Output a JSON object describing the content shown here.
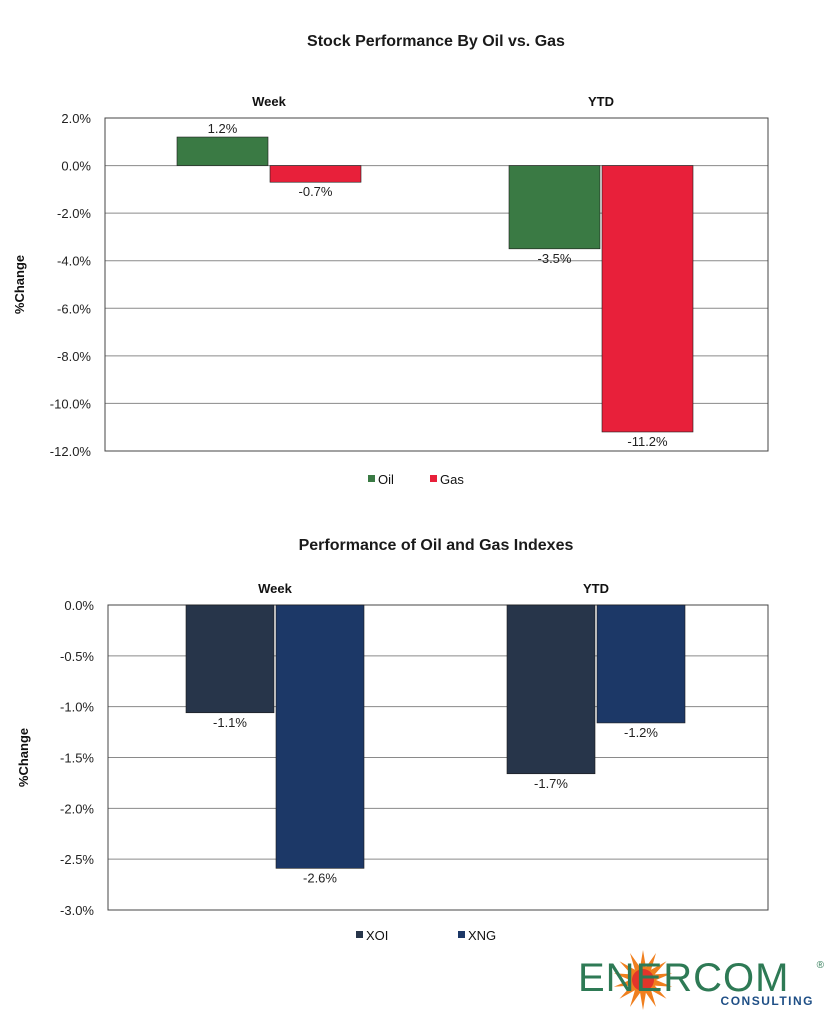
{
  "charts": [
    {
      "title": "Stock Performance By Oil vs. Gas",
      "ylabel": "%Change",
      "categories": [
        "Week",
        "YTD"
      ],
      "y_ticks": [
        "2.0%",
        "0.0%",
        "-2.0%",
        "-4.0%",
        "-6.0%",
        "-8.0%",
        "-10.0%",
        "-12.0%"
      ],
      "legend": [
        "Oil",
        "Gas"
      ]
    },
    {
      "title": "Performance of Oil and Gas Indexes",
      "ylabel": "%Change",
      "categories": [
        "Week",
        "YTD"
      ],
      "y_ticks": [
        "0.0%",
        "-0.5%",
        "-1.0%",
        "-1.5%",
        "-2.0%",
        "-2.5%",
        "-3.0%"
      ],
      "legend": [
        "XOI",
        "XNG"
      ]
    }
  ],
  "chart_data": [
    {
      "type": "bar",
      "title": "Stock Performance By Oil vs. Gas",
      "ylabel": "%Change",
      "xlabel": "",
      "categories": [
        "Week",
        "YTD"
      ],
      "ylim": [
        -12,
        2
      ],
      "y_tick_step": 2,
      "grid": true,
      "legend_position": "bottom",
      "series": [
        {
          "name": "Oil",
          "values": [
            1.2,
            -3.5
          ],
          "labels": [
            "1.2%",
            "-3.5%"
          ],
          "color": "#3a7a44"
        },
        {
          "name": "Gas",
          "values": [
            -0.7,
            -11.2
          ],
          "labels": [
            "-0.7%",
            "-11.2%"
          ],
          "color": "#e8203a"
        }
      ]
    },
    {
      "type": "bar",
      "title": "Performance of Oil and Gas Indexes",
      "ylabel": "%Change",
      "xlabel": "",
      "categories": [
        "Week",
        "YTD"
      ],
      "ylim": [
        -3,
        0
      ],
      "y_tick_step": 0.5,
      "grid": true,
      "legend_position": "bottom",
      "series": [
        {
          "name": "XOI",
          "values": [
            -1.06,
            -1.66
          ],
          "labels": [
            "-1.1%",
            "-1.7%"
          ],
          "color": "#27354a"
        },
        {
          "name": "XNG",
          "values": [
            -2.59,
            -1.16
          ],
          "labels": [
            "-2.6%",
            "-1.2%"
          ],
          "color": "#1c3867"
        }
      ]
    }
  ],
  "logo": {
    "wordmark": "ENERCOM",
    "registered": "®",
    "subtitle": "CONSULTING",
    "colors": {
      "text": "#2e7a55",
      "sub": "#1f4f86",
      "star": "#f07f1e"
    }
  }
}
